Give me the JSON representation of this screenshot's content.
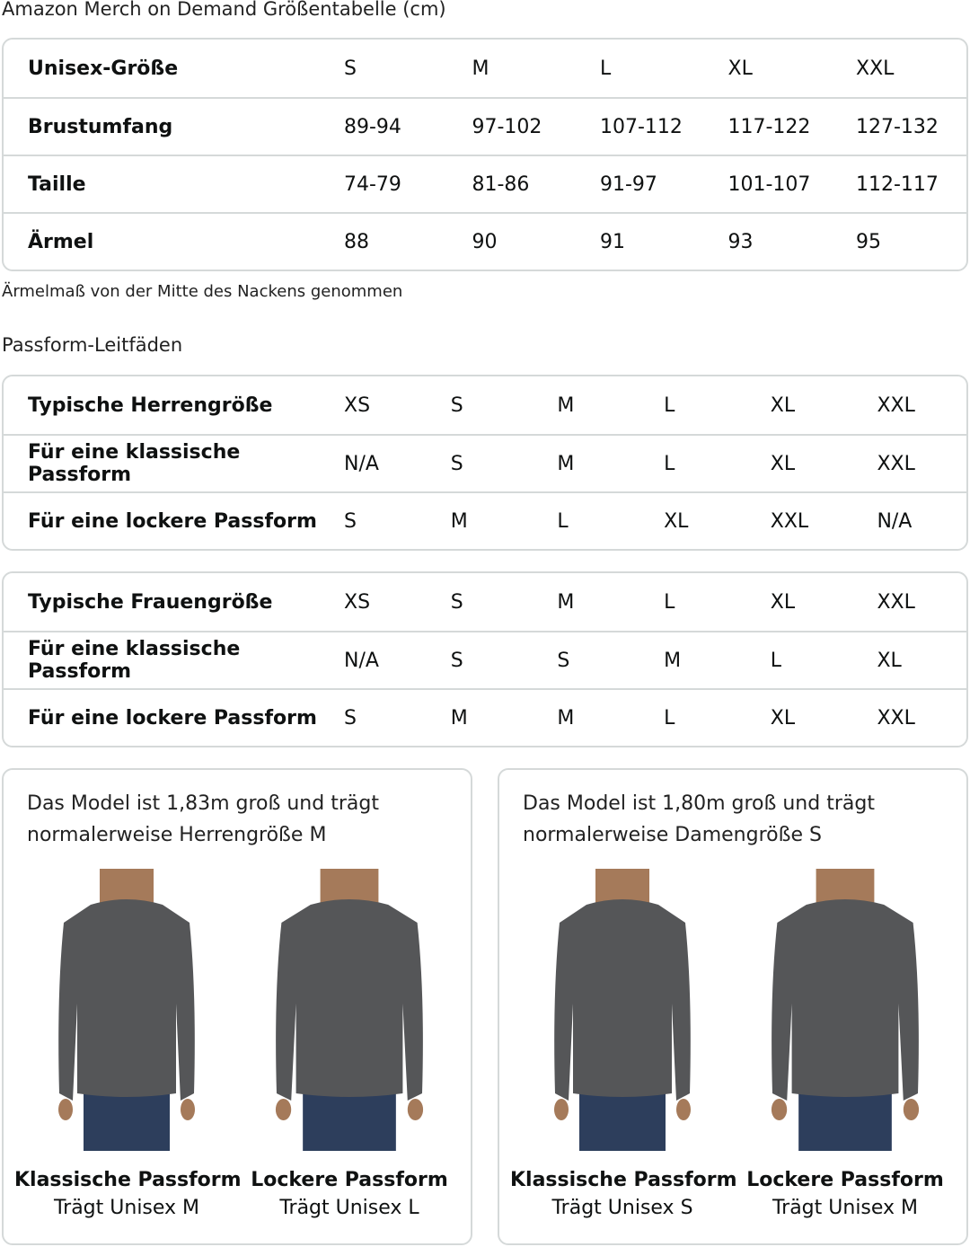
{
  "title": "Amazon Merch on Demand Größentabelle (cm)",
  "size_table": {
    "rows": [
      {
        "label": "Unisex-Größe",
        "values": [
          "S",
          "M",
          "L",
          "XL",
          "XXL"
        ]
      },
      {
        "label": "Brustumfang",
        "values": [
          "89-94",
          "97-102",
          "107-112",
          "117-122",
          "127-132"
        ]
      },
      {
        "label": "Taille",
        "values": [
          "74-79",
          "81-86",
          "91-97",
          "101-107",
          "112-117"
        ]
      },
      {
        "label": "Ärmel",
        "values": [
          "88",
          "90",
          "91",
          "93",
          "95"
        ]
      }
    ]
  },
  "note": "Ärmelmaß von der Mitte des Nackens genommen",
  "fit_title": "Passform-Leitfäden",
  "men_table": {
    "rows": [
      {
        "label": "Typische Herrengröße",
        "values": [
          "XS",
          "S",
          "M",
          "L",
          "XL",
          "XXL"
        ]
      },
      {
        "label": "Für eine klassische Passform",
        "values": [
          "N/A",
          "S",
          "M",
          "L",
          "XL",
          "XXL"
        ]
      },
      {
        "label": "Für eine lockere Passform",
        "values": [
          "S",
          "M",
          "L",
          "XL",
          "XXL",
          "N/A"
        ]
      }
    ]
  },
  "women_table": {
    "rows": [
      {
        "label": "Typische Frauengröße",
        "values": [
          "XS",
          "S",
          "M",
          "L",
          "XL",
          "XXL"
        ]
      },
      {
        "label": "Für eine klassische Passform",
        "values": [
          "N/A",
          "S",
          "S",
          "M",
          "L",
          "XL"
        ]
      },
      {
        "label": "Für eine lockere Passform",
        "values": [
          "S",
          "M",
          "M",
          "L",
          "XL",
          "XXL"
        ]
      }
    ]
  },
  "cards": [
    {
      "caption": [
        "Das Model ist 1,83m groß und trägt",
        "normalerweise Herrengröße M"
      ],
      "figures": [
        {
          "name": "Klassische Passform",
          "wears": "Trägt Unisex M"
        },
        {
          "name": "Lockere Passform",
          "wears": "Trägt Unisex L"
        }
      ]
    },
    {
      "caption": [
        "Das Model ist 1,80m groß und trägt",
        "normalerweise Damengröße S"
      ],
      "figures": [
        {
          "name": "Klassische Passform",
          "wears": "Trägt Unisex S"
        },
        {
          "name": "Lockere Passform",
          "wears": "Trägt Unisex M"
        }
      ]
    }
  ],
  "colors": {
    "shirt": "#555658",
    "jeans": "#2d3e5c",
    "skin": "#a57a5a",
    "border": "#d5d9d9"
  }
}
